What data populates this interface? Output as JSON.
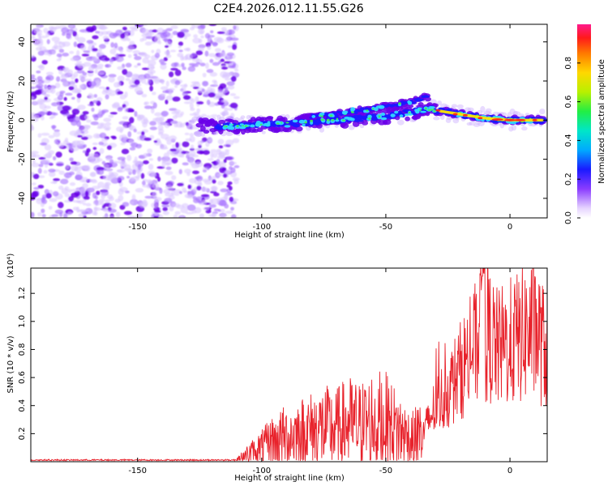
{
  "figure_title": "C2E4.2026.012.11.55.G26",
  "colors": {
    "scatter_fill": "#6a00e8",
    "ridge": "#33d6ff",
    "snr_line": "#e8222b",
    "axis": "#000000"
  },
  "chart_data": [
    {
      "type": "scatter",
      "title": "C2E4.2026.012.11.55.G26",
      "xlabel": "Height of straight line (km)",
      "ylabel": "Frequency (Hz)",
      "xlim": [
        -193,
        15
      ],
      "ylim": [
        -50,
        49
      ],
      "xticks": [
        -150,
        -100,
        -50,
        0
      ],
      "xtick_labels": [
        "-150",
        "-100",
        "-50",
        "0"
      ],
      "yticks": [
        -40,
        -20,
        0,
        20,
        40
      ],
      "ytick_labels": [
        "-40",
        "-20",
        "0",
        "20",
        "40"
      ],
      "noise_region_x": [
        -193,
        -110
      ],
      "ridge": {
        "x": [
          -125,
          -110,
          -100,
          -90,
          -80,
          -70,
          -60,
          -50,
          -40,
          -33,
          -30,
          -20,
          -10,
          0,
          10,
          14
        ],
        "y": [
          -3,
          -3,
          -2,
          -2,
          -1,
          0,
          1,
          2,
          4,
          6,
          5,
          3,
          1,
          0,
          0,
          0
        ]
      },
      "upper_branch": {
        "x": [
          -85,
          -70,
          -60,
          -50,
          -40,
          -33
        ],
        "y": [
          1,
          3,
          5,
          7,
          9,
          12
        ]
      },
      "colorbar": {
        "label": "Normalized spectral amplitude",
        "range": [
          0.0,
          1.0
        ],
        "ticks": [
          0.0,
          0.2,
          0.4,
          0.6,
          0.8
        ],
        "tick_labels": [
          "0.0",
          "0.2",
          "0.4",
          "0.6",
          "0.8"
        ]
      }
    },
    {
      "type": "line",
      "xlabel": "Height of straight line (km)",
      "ylabel": "SNR (10 * v/v)",
      "y_multiplier": "(x10⁴)",
      "xlim": [
        -193,
        15
      ],
      "ylim": [
        0,
        1.38
      ],
      "xticks": [
        -150,
        -100,
        -50,
        0
      ],
      "xtick_labels": [
        "-150",
        "-100",
        "-50",
        "0"
      ],
      "yticks": [
        0.2,
        0.4,
        0.6,
        0.8,
        1.0,
        1.2
      ],
      "ytick_labels": [
        "0.2",
        "0.4",
        "0.6",
        "0.8",
        "1.0",
        "1.2"
      ],
      "series": [
        {
          "name": "SNR",
          "x": [
            -193,
            -150,
            -120,
            -110,
            -105,
            -100,
            -95,
            -90,
            -85,
            -80,
            -75,
            -70,
            -65,
            -60,
            -55,
            -50,
            -45,
            -40,
            -35,
            -30,
            -25,
            -20,
            -15,
            -10,
            -5,
            0,
            5,
            10,
            14
          ],
          "y": [
            0.01,
            0.01,
            0.01,
            0.02,
            0.06,
            0.1,
            0.15,
            0.18,
            0.2,
            0.22,
            0.24,
            0.23,
            0.27,
            0.25,
            0.3,
            0.28,
            0.22,
            0.16,
            0.2,
            0.4,
            0.5,
            0.65,
            0.8,
            0.95,
            0.8,
            0.85,
            0.9,
            0.95,
            0.8
          ]
        }
      ]
    }
  ]
}
